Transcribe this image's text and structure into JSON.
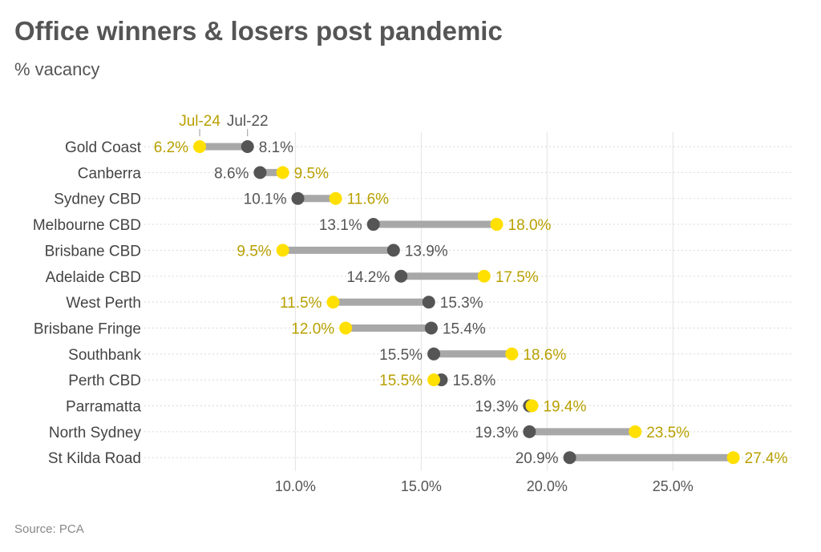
{
  "chart_data": {
    "type": "dumbbell",
    "title": "Office winners & losers post pandemic",
    "subtitle": "% vacancy",
    "source": "Source: PCA",
    "series": [
      {
        "name": "Jul-22",
        "color": "#555555",
        "label_color": "#555555"
      },
      {
        "name": "Jul-24",
        "color": "#FFE000",
        "label_color": "#B8A000"
      }
    ],
    "bar_color": "#A8A8A8",
    "categories": [
      "Gold Coast",
      "Canberra",
      "Sydney CBD",
      "Melbourne CBD",
      "Brisbane CBD",
      "Adelaide CBD",
      "West Perth",
      "Brisbane Fringe",
      "Southbank",
      "Perth CBD",
      "Parramatta",
      "North Sydney",
      "St Kilda Road"
    ],
    "jul22": [
      8.1,
      8.6,
      10.1,
      13.1,
      13.9,
      14.2,
      15.3,
      15.4,
      15.5,
      15.8,
      19.3,
      19.3,
      20.9
    ],
    "jul24": [
      6.2,
      9.5,
      11.6,
      18.0,
      9.5,
      17.5,
      11.5,
      12.0,
      18.6,
      15.5,
      19.4,
      23.5,
      27.4
    ],
    "x_ticks": [
      10,
      15,
      20,
      25
    ],
    "x_tick_labels": [
      "10.0%",
      "15.0%",
      "20.0%",
      "25.0%"
    ],
    "xlim": [
      4.0,
      29.8
    ],
    "grid": true,
    "legend_placement": "top, annotated on first row"
  }
}
